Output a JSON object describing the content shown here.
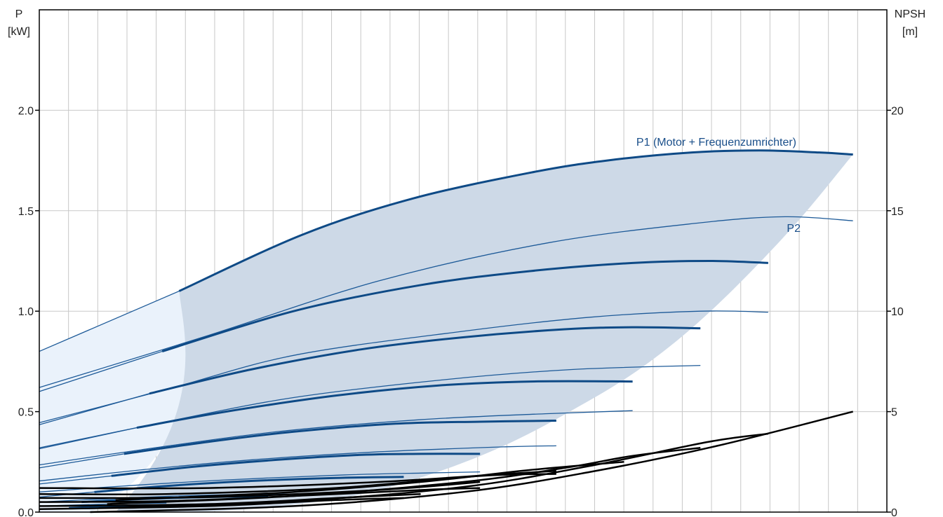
{
  "chart_data": {
    "type": "line",
    "left_axis": {
      "label_line1": "P",
      "label_line2": "[kW]",
      "ylim": [
        0,
        2.5
      ],
      "ticks": [
        0.0,
        0.5,
        1.0,
        1.5,
        2.0
      ],
      "tick_labels": [
        "0.0",
        "0.5",
        "1.0",
        "1.5",
        "2.0"
      ]
    },
    "right_axis": {
      "label_line1": "NPSH",
      "label_line2": "[m]",
      "ylim": [
        0,
        25
      ],
      "ticks": [
        0,
        5,
        10,
        15,
        20
      ],
      "tick_labels": [
        "0",
        "5",
        "10",
        "15",
        "20"
      ]
    },
    "x_axis": {
      "xlim": [
        0,
        1
      ],
      "grid_divisions": 29
    },
    "grid": true,
    "colors": {
      "p1": "#0e4a86",
      "p2": "#1d5a98",
      "npsh": "#000000",
      "envelope": "#cdd9e7",
      "low_region": "#eaf2fb",
      "grid": "#c8c8c8",
      "axis": "#000000"
    },
    "labels": {
      "p1": "P1 (Motor + Frequenzumrichter)",
      "p2": "P2"
    },
    "envelope": {
      "upper": [
        [
          0.165,
          1.1
        ],
        [
          0.31,
          1.38
        ],
        [
          0.44,
          1.56
        ],
        [
          0.58,
          1.69
        ],
        [
          0.67,
          1.75
        ],
        [
          0.77,
          1.79
        ],
        [
          0.85,
          1.8
        ],
        [
          0.92,
          1.79
        ],
        [
          0.96,
          1.78
        ]
      ],
      "lower": [
        [
          0.96,
          1.78
        ],
        [
          0.885,
          1.4
        ],
        [
          0.792,
          1.0
        ],
        [
          0.711,
          0.72
        ],
        [
          0.63,
          0.51
        ],
        [
          0.548,
          0.33
        ],
        [
          0.463,
          0.19
        ],
        [
          0.37,
          0.08
        ],
        [
          0.26,
          0.02
        ],
        [
          0.17,
          0.0
        ],
        [
          0.09,
          0.0
        ]
      ]
    },
    "low_region": {
      "upper": [
        [
          0,
          0.8
        ],
        [
          0.165,
          1.1
        ]
      ],
      "lower_x_at_zero": 0.06
    },
    "p1_curves": [
      {
        "points": [
          [
            0.165,
            1.1
          ],
          [
            0.31,
            1.38
          ],
          [
            0.44,
            1.56
          ],
          [
            0.58,
            1.69
          ],
          [
            0.67,
            1.75
          ],
          [
            0.77,
            1.79
          ],
          [
            0.85,
            1.8
          ],
          [
            0.92,
            1.79
          ],
          [
            0.96,
            1.78
          ]
        ]
      },
      {
        "points": [
          [
            0.145,
            0.8
          ],
          [
            0.3,
            1.0
          ],
          [
            0.45,
            1.13
          ],
          [
            0.58,
            1.2
          ],
          [
            0.7,
            1.24
          ],
          [
            0.79,
            1.25
          ],
          [
            0.86,
            1.24
          ]
        ]
      },
      {
        "points": [
          [
            0.13,
            0.59
          ],
          [
            0.25,
            0.71
          ],
          [
            0.38,
            0.81
          ],
          [
            0.5,
            0.87
          ],
          [
            0.62,
            0.91
          ],
          [
            0.7,
            0.92
          ],
          [
            0.78,
            0.915
          ]
        ]
      },
      {
        "points": [
          [
            0.115,
            0.42
          ],
          [
            0.22,
            0.5
          ],
          [
            0.35,
            0.58
          ],
          [
            0.47,
            0.63
          ],
          [
            0.58,
            0.65
          ],
          [
            0.7,
            0.65
          ]
        ]
      },
      {
        "points": [
          [
            0.1,
            0.29
          ],
          [
            0.2,
            0.35
          ],
          [
            0.3,
            0.4
          ],
          [
            0.42,
            0.44
          ],
          [
            0.52,
            0.45
          ],
          [
            0.61,
            0.455
          ]
        ]
      },
      {
        "points": [
          [
            0.085,
            0.18
          ],
          [
            0.18,
            0.225
          ],
          [
            0.28,
            0.26
          ],
          [
            0.38,
            0.285
          ],
          [
            0.45,
            0.29
          ],
          [
            0.52,
            0.29
          ]
        ]
      },
      {
        "points": [
          [
            0.065,
            0.1
          ],
          [
            0.15,
            0.13
          ],
          [
            0.25,
            0.155
          ],
          [
            0.35,
            0.17
          ],
          [
            0.43,
            0.175
          ]
        ]
      },
      {
        "points": [
          [
            0.05,
            0.05
          ],
          [
            0.12,
            0.065
          ],
          [
            0.2,
            0.075
          ],
          [
            0.27,
            0.08
          ]
        ]
      },
      {
        "points": [
          [
            0.035,
            0.02
          ],
          [
            0.1,
            0.03
          ],
          [
            0.18,
            0.035
          ]
        ]
      }
    ],
    "p2_curves": [
      {
        "points": [
          [
            0,
            0.8
          ],
          [
            0.165,
            1.1
          ]
        ]
      },
      {
        "points": [
          [
            0,
            0.62
          ],
          [
            0.2,
            0.88
          ],
          [
            0.4,
            1.15
          ],
          [
            0.6,
            1.34
          ],
          [
            0.78,
            1.44
          ],
          [
            0.88,
            1.47
          ],
          [
            0.96,
            1.45
          ]
        ]
      },
      {
        "points": [
          [
            0,
            0.6
          ],
          [
            0.145,
            0.8
          ]
        ]
      },
      {
        "points": [
          [
            0,
            0.445
          ],
          [
            0.15,
            0.61
          ],
          [
            0.3,
            0.78
          ],
          [
            0.5,
            0.9
          ],
          [
            0.65,
            0.97
          ],
          [
            0.78,
            1.0
          ],
          [
            0.86,
            0.995
          ]
        ]
      },
      {
        "points": [
          [
            0,
            0.435
          ],
          [
            0.13,
            0.59
          ]
        ]
      },
      {
        "points": [
          [
            0,
            0.32
          ],
          [
            0.15,
            0.45
          ],
          [
            0.3,
            0.57
          ],
          [
            0.48,
            0.66
          ],
          [
            0.63,
            0.71
          ],
          [
            0.78,
            0.73
          ]
        ]
      },
      {
        "points": [
          [
            0,
            0.315
          ],
          [
            0.115,
            0.42
          ]
        ]
      },
      {
        "points": [
          [
            0,
            0.235
          ],
          [
            0.12,
            0.31
          ],
          [
            0.28,
            0.4
          ],
          [
            0.45,
            0.46
          ],
          [
            0.6,
            0.49
          ],
          [
            0.7,
            0.505
          ]
        ]
      },
      {
        "points": [
          [
            0,
            0.22
          ],
          [
            0.1,
            0.29
          ]
        ]
      },
      {
        "points": [
          [
            0,
            0.155
          ],
          [
            0.12,
            0.21
          ],
          [
            0.25,
            0.26
          ],
          [
            0.4,
            0.3
          ],
          [
            0.55,
            0.325
          ],
          [
            0.61,
            0.33
          ]
        ]
      },
      {
        "points": [
          [
            0,
            0.14
          ],
          [
            0.085,
            0.18
          ]
        ]
      },
      {
        "points": [
          [
            0,
            0.1
          ],
          [
            0.1,
            0.13
          ],
          [
            0.22,
            0.16
          ],
          [
            0.36,
            0.185
          ],
          [
            0.46,
            0.195
          ],
          [
            0.52,
            0.2
          ]
        ]
      },
      {
        "points": [
          [
            0,
            0.075
          ],
          [
            0.065,
            0.1
          ]
        ]
      },
      {
        "points": [
          [
            0,
            0.05
          ],
          [
            0.1,
            0.07
          ],
          [
            0.2,
            0.085
          ],
          [
            0.3,
            0.09
          ]
        ]
      },
      {
        "points": [
          [
            0,
            0.03
          ],
          [
            0.08,
            0.04
          ],
          [
            0.15,
            0.045
          ]
        ]
      },
      {
        "points": [
          [
            0,
            0.015
          ],
          [
            0.06,
            0.02
          ]
        ]
      }
    ],
    "npsh_curves": [
      {
        "points": [
          [
            0.06,
            0.0
          ],
          [
            0.3,
            0.3
          ],
          [
            0.5,
            1.0
          ],
          [
            0.65,
            2.0
          ],
          [
            0.8,
            3.3
          ],
          [
            0.96,
            5.0
          ]
        ]
      },
      {
        "points": [
          [
            0.07,
            0.2
          ],
          [
            0.3,
            0.55
          ],
          [
            0.5,
            1.25
          ],
          [
            0.65,
            2.3
          ],
          [
            0.79,
            3.5
          ],
          [
            0.86,
            3.9
          ]
        ]
      },
      {
        "points": [
          [
            0.08,
            0.4
          ],
          [
            0.3,
            0.8
          ],
          [
            0.5,
            1.5
          ],
          [
            0.62,
            2.2
          ],
          [
            0.7,
            2.8
          ],
          [
            0.78,
            3.2
          ]
        ]
      },
      {
        "points": [
          [
            0.09,
            0.6
          ],
          [
            0.3,
            1.0
          ],
          [
            0.45,
            1.5
          ],
          [
            0.58,
            2.1
          ],
          [
            0.69,
            2.5
          ]
        ]
      },
      {
        "points": [
          [
            0.0,
            1.2
          ],
          [
            0.2,
            1.2
          ],
          [
            0.4,
            1.5
          ],
          [
            0.55,
            1.9
          ],
          [
            0.61,
            2.05
          ]
        ]
      },
      {
        "points": [
          [
            0.0,
            0.9
          ],
          [
            0.15,
            0.9
          ],
          [
            0.35,
            1.2
          ],
          [
            0.52,
            1.8
          ],
          [
            0.61,
            1.9
          ]
        ]
      },
      {
        "points": [
          [
            0.0,
            0.7
          ],
          [
            0.2,
            0.75
          ],
          [
            0.4,
            1.1
          ],
          [
            0.52,
            1.5
          ]
        ]
      },
      {
        "points": [
          [
            0.0,
            0.5
          ],
          [
            0.15,
            0.55
          ],
          [
            0.3,
            0.8
          ],
          [
            0.45,
            1.1
          ],
          [
            0.52,
            1.2
          ]
        ]
      },
      {
        "points": [
          [
            0.0,
            0.3
          ],
          [
            0.2,
            0.4
          ],
          [
            0.35,
            0.7
          ],
          [
            0.45,
            0.9
          ]
        ]
      },
      {
        "points": [
          [
            0.0,
            0.15
          ],
          [
            0.2,
            0.3
          ],
          [
            0.35,
            0.6
          ],
          [
            0.43,
            0.7
          ]
        ]
      }
    ]
  }
}
